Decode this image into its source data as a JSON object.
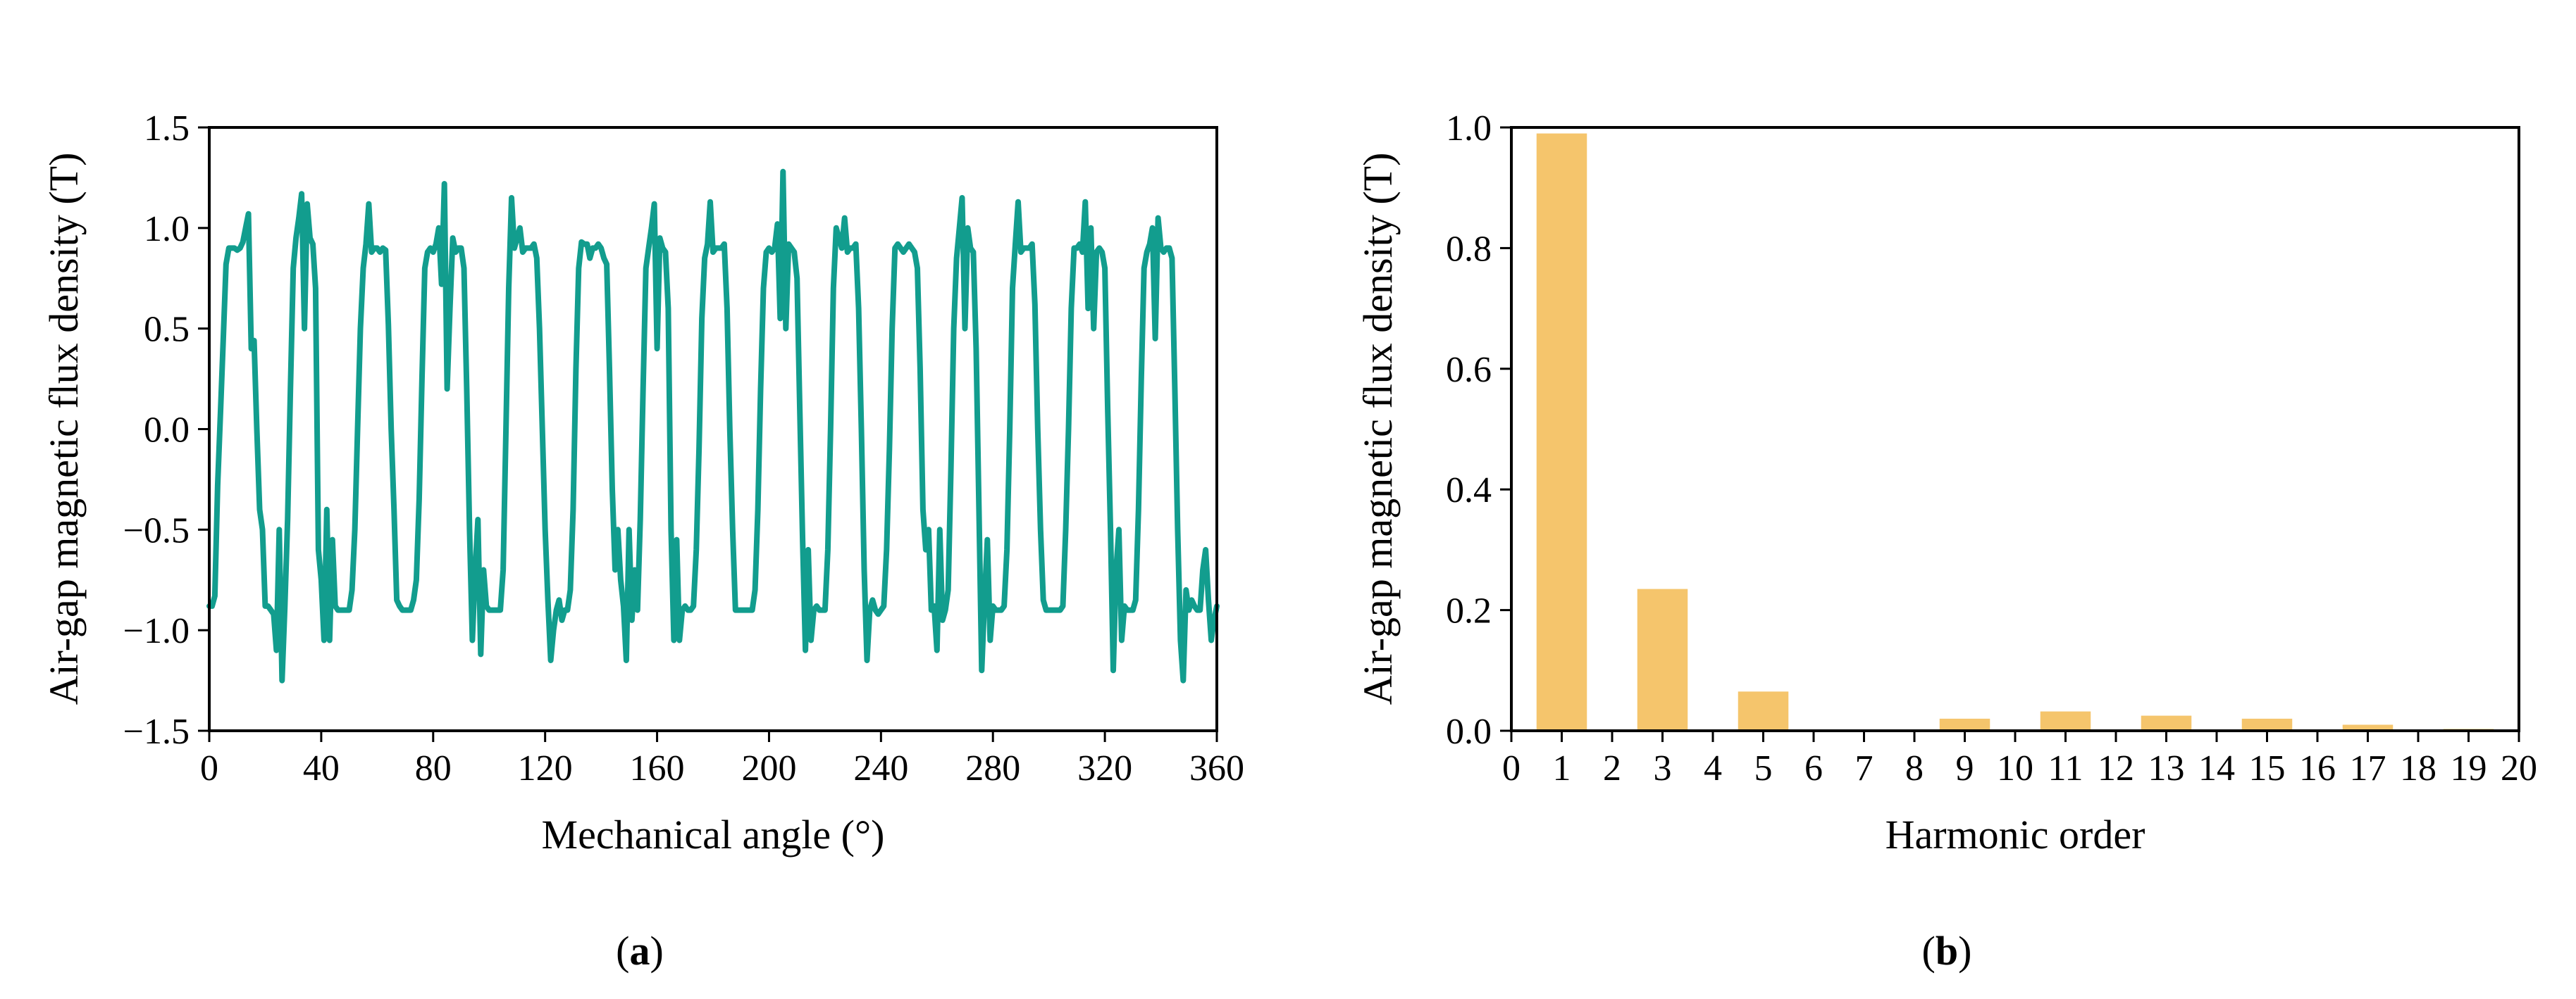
{
  "panels": {
    "a": {
      "label_open": "(",
      "label_letter": "a",
      "label_close": ")"
    },
    "b": {
      "label_open": "(",
      "label_letter": "b",
      "label_close": ")"
    }
  },
  "chart_data": [
    {
      "id": "a",
      "type": "line",
      "title": "",
      "xlabel": "Mechanical angle (°)",
      "ylabel": "Air-gap magnetic flux density (T)",
      "xlim": [
        0,
        360
      ],
      "ylim": [
        -1.5,
        1.5
      ],
      "xticks": [
        "0",
        "40",
        "80",
        "120",
        "160",
        "200",
        "240",
        "280",
        "320",
        "360"
      ],
      "yticks": [
        "−1.5",
        "−1.0",
        "−0.5",
        "0.0",
        "0.5",
        "1.0",
        "1.5"
      ],
      "grid": false,
      "color": "#129d8e",
      "series": [
        {
          "x": [
            0,
            1,
            2,
            3,
            4,
            5,
            6,
            7,
            8,
            9,
            10,
            11,
            12,
            13,
            14,
            15,
            16,
            17,
            18,
            19,
            20,
            21,
            22,
            23,
            24,
            25,
            26,
            27,
            28,
            29,
            30,
            31,
            32,
            33,
            34,
            35,
            36,
            37,
            38,
            39,
            40,
            41,
            42,
            43,
            44,
            45,
            46,
            47,
            48,
            49,
            50,
            51,
            52,
            53,
            54,
            55,
            56,
            57,
            58,
            59,
            60,
            61,
            62,
            63,
            64,
            65,
            66,
            67,
            68,
            69,
            70,
            71,
            72,
            73,
            74,
            75,
            76,
            77,
            78,
            79,
            80,
            81,
            82,
            83,
            84,
            85,
            86,
            87,
            88,
            89,
            90,
            91,
            92,
            93,
            94,
            95,
            96,
            97,
            98,
            99,
            100,
            101,
            102,
            103,
            104,
            105,
            106,
            107,
            108,
            109,
            110,
            111,
            112,
            113,
            114,
            115,
            116,
            117,
            118,
            119,
            120,
            121,
            122,
            123,
            124,
            125,
            126,
            127,
            128,
            129,
            130,
            131,
            132,
            133,
            134,
            135,
            136,
            137,
            138,
            139,
            140,
            141,
            142,
            143,
            144,
            145,
            146,
            147,
            148,
            149,
            150,
            151,
            152,
            153,
            154,
            155,
            156,
            157,
            158,
            159,
            160,
            161,
            162,
            163,
            164,
            165,
            166,
            167,
            168,
            169,
            170,
            171,
            172,
            173,
            174,
            175,
            176,
            177,
            178,
            179,
            180,
            181,
            182,
            183,
            184,
            185,
            186,
            187,
            188,
            189,
            190,
            191,
            192,
            193,
            194,
            195,
            196,
            197,
            198,
            199,
            200,
            201,
            202,
            203,
            204,
            205,
            206,
            207,
            208,
            209,
            210,
            211,
            212,
            213,
            214,
            215,
            216,
            217,
            218,
            219,
            220,
            221,
            222,
            223,
            224,
            225,
            226,
            227,
            228,
            229,
            230,
            231,
            232,
            233,
            234,
            235,
            236,
            237,
            238,
            239,
            240,
            241,
            242,
            243,
            244,
            245,
            246,
            247,
            248,
            249,
            250,
            251,
            252,
            253,
            254,
            255,
            256,
            257,
            258,
            259,
            260,
            261,
            262,
            263,
            264,
            265,
            266,
            267,
            268,
            269,
            270,
            271,
            272,
            273,
            274,
            275,
            276,
            277,
            278,
            279,
            280,
            281,
            282,
            283,
            284,
            285,
            286,
            287,
            288,
            289,
            290,
            291,
            292,
            293,
            294,
            295,
            296,
            297,
            298,
            299,
            300,
            301,
            302,
            303,
            304,
            305,
            306,
            307,
            308,
            309,
            310,
            311,
            312,
            313,
            314,
            315,
            316,
            317,
            318,
            319,
            320,
            321,
            322,
            323,
            324,
            325,
            326,
            327,
            328,
            329,
            330,
            331,
            332,
            333,
            334,
            335,
            336,
            337,
            338,
            339,
            340,
            341,
            342,
            343,
            344,
            345,
            346,
            347,
            348,
            349,
            350,
            351,
            352,
            353,
            354,
            355,
            356,
            357,
            358,
            359,
            360
          ],
          "y": [
            -0.88,
            -0.88,
            -0.83,
            -0.28,
            0.08,
            0.45,
            0.82,
            0.9,
            0.9,
            0.9,
            0.89,
            0.9,
            0.93,
            1.0,
            1.07,
            0.4,
            0.44,
            0.0,
            -0.4,
            -0.5,
            -0.88,
            -0.88,
            -0.9,
            -0.92,
            -1.1,
            -0.5,
            -1.25,
            -0.88,
            -0.45,
            0.2,
            0.8,
            0.95,
            1.05,
            1.17,
            0.5,
            1.12,
            0.95,
            0.92,
            0.7,
            -0.6,
            -0.75,
            -1.05,
            -0.4,
            -1.05,
            -0.55,
            -0.88,
            -0.9,
            -0.9,
            -0.9,
            -0.9,
            -0.9,
            -0.8,
            -0.5,
            0.0,
            0.5,
            0.8,
            0.92,
            1.12,
            0.88,
            0.9,
            0.9,
            0.88,
            0.9,
            0.89,
            0.52,
            0.0,
            -0.4,
            -0.85,
            -0.88,
            -0.9,
            -0.9,
            -0.9,
            -0.9,
            -0.85,
            -0.75,
            -0.35,
            0.25,
            0.8,
            0.88,
            0.9,
            0.88,
            0.92,
            1.0,
            0.72,
            1.22,
            0.2,
            0.6,
            0.95,
            0.88,
            0.9,
            0.9,
            0.8,
            0.2,
            -0.5,
            -1.05,
            -0.7,
            -0.45,
            -1.12,
            -0.7,
            -0.88,
            -0.9,
            -0.9,
            -0.9,
            -0.9,
            -0.9,
            -0.7,
            0.0,
            0.7,
            1.15,
            0.9,
            0.95,
            1.0,
            0.88,
            0.9,
            0.9,
            0.9,
            0.92,
            0.85,
            0.5,
            0.0,
            -0.5,
            -0.85,
            -1.15,
            -1.0,
            -0.9,
            -0.85,
            -0.95,
            -0.9,
            -0.9,
            -0.8,
            -0.4,
            0.3,
            0.8,
            0.93,
            0.92,
            0.92,
            0.85,
            0.9,
            0.9,
            0.92,
            0.9,
            0.85,
            0.82,
            0.3,
            -0.3,
            -0.7,
            -0.5,
            -0.75,
            -0.88,
            -1.15,
            -0.5,
            -0.95,
            -0.7,
            -0.9,
            -0.45,
            0.2,
            0.8,
            0.9,
            1.0,
            1.12,
            0.4,
            0.95,
            0.9,
            0.88,
            0.6,
            -0.5,
            -1.05,
            -0.55,
            -1.05,
            -0.9,
            -0.88,
            -0.9,
            -0.9,
            -0.88,
            -0.6,
            -0.1,
            0.55,
            0.85,
            0.92,
            1.13,
            0.88,
            0.9,
            0.9,
            0.9,
            0.92,
            0.6,
            0.0,
            -0.5,
            -0.9,
            -0.9,
            -0.9,
            -0.9,
            -0.9,
            -0.9,
            -0.9,
            -0.8,
            -0.4,
            0.2,
            0.7,
            0.88,
            0.9,
            0.88,
            0.9,
            1.02,
            0.55,
            1.28,
            0.5,
            0.92,
            0.9,
            0.88,
            0.75,
            0.1,
            -0.55,
            -1.1,
            -0.6,
            -1.05,
            -0.9,
            -0.88,
            -0.9,
            -0.9,
            -0.9,
            -0.6,
            0.0,
            0.7,
            1.0,
            0.95,
            0.9,
            1.05,
            0.88,
            0.9,
            0.9,
            0.92,
            0.6,
            0.0,
            -0.7,
            -1.15,
            -0.9,
            -0.85,
            -0.9,
            -0.92,
            -0.9,
            -0.88,
            -0.6,
            -0.1,
            0.5,
            0.9,
            0.92,
            0.9,
            0.88,
            0.9,
            0.92,
            0.9,
            0.88,
            0.8,
            0.3,
            -0.4,
            -0.6,
            -0.5,
            -0.9,
            -0.88,
            -1.1,
            -0.5,
            -0.95,
            -0.9,
            -0.8,
            -0.2,
            0.5,
            0.85,
            1.0,
            1.15,
            0.5,
            1.0,
            0.9,
            0.88,
            0.4,
            -0.4,
            -1.2,
            -0.85,
            -0.55,
            -1.05,
            -0.88,
            -0.9,
            -0.9,
            -0.9,
            -0.88,
            -0.6,
            0.0,
            0.7,
            0.92,
            1.13,
            0.88,
            0.9,
            0.9,
            0.9,
            0.92,
            0.62,
            0.0,
            -0.5,
            -0.85,
            -0.9,
            -0.9,
            -0.9,
            -0.9,
            -0.9,
            -0.9,
            -0.88,
            -0.5,
            0.0,
            0.6,
            0.9,
            0.9,
            0.92,
            0.88,
            1.13,
            0.6,
            1.0,
            0.5,
            0.88,
            0.9,
            0.88,
            0.8,
            0.1,
            -0.5,
            -1.2,
            -0.7,
            -0.5,
            -1.05,
            -0.88,
            -0.9,
            -0.9,
            -0.9,
            -0.85,
            -0.4,
            0.25,
            0.8,
            0.88,
            0.92,
            1.0,
            0.45,
            1.05,
            0.9,
            0.88,
            0.9,
            0.9,
            0.85,
            0.2,
            -0.5,
            -1.05,
            -1.25,
            -0.8,
            -0.9,
            -0.85,
            -0.88,
            -0.9,
            -0.9,
            -0.7,
            -0.6,
            -0.85,
            -1.05,
            -0.95,
            -0.88
          ]
        }
      ]
    },
    {
      "id": "b",
      "type": "bar",
      "title": "",
      "xlabel": "Harmonic order",
      "ylabel": "Air-gap magnetic flux density (T)",
      "xlim": [
        0,
        20
      ],
      "ylim": [
        0,
        1.0
      ],
      "xticks": [
        "0",
        "1",
        "2",
        "3",
        "4",
        "5",
        "6",
        "7",
        "8",
        "9",
        "10",
        "11",
        "12",
        "13",
        "14",
        "15",
        "16",
        "17",
        "18",
        "19",
        "20"
      ],
      "yticks": [
        "0.0",
        "0.2",
        "0.4",
        "0.6",
        "0.8",
        "1.0"
      ],
      "grid": false,
      "color": "#f5c56c",
      "categories": [
        1,
        3,
        5,
        7,
        9,
        11,
        13,
        15,
        17,
        19
      ],
      "values": [
        0.99,
        0.235,
        0.065,
        0.002,
        0.02,
        0.032,
        0.025,
        0.02,
        0.01,
        0.003
      ]
    }
  ]
}
